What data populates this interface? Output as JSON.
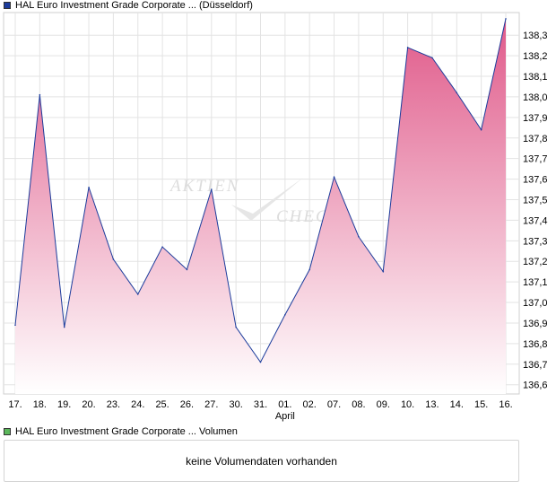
{
  "legend": {
    "price_label": "HAL Euro Investment Grade Corporate ... (Düsseldorf)",
    "price_color": "#1c3c9c",
    "volume_label": "HAL Euro Investment Grade Corporate ... Volumen",
    "volume_color": "#5cb85c"
  },
  "watermark": {
    "line1": "AKTIEN",
    "line2": "CHECK"
  },
  "volume": {
    "message": "keine Volumendaten vorhanden"
  },
  "chart_data": {
    "type": "area",
    "x": [
      "17.",
      "18.",
      "19.",
      "20.",
      "23.",
      "24.",
      "25.",
      "26.",
      "27.",
      "30.",
      "31.",
      "01.",
      "02.",
      "07.",
      "08.",
      "09.",
      "10.",
      "13.",
      "14.",
      "15.",
      "16."
    ],
    "x_sublabels": [
      {
        "index": 11,
        "text": "April"
      }
    ],
    "series": [
      {
        "values": [
          136.89,
          138.01,
          136.88,
          137.56,
          137.21,
          137.04,
          137.27,
          137.16,
          137.55,
          136.88,
          136.71,
          136.94,
          137.16,
          137.61,
          137.32,
          137.15,
          138.24,
          138.19,
          138.02,
          137.84,
          138.38
        ]
      }
    ],
    "yticks": [
      136.6,
      136.7,
      136.8,
      136.9,
      137.0,
      137.1,
      137.2,
      137.3,
      137.4,
      137.5,
      137.6,
      137.7,
      137.8,
      137.9,
      138.0,
      138.1,
      138.2,
      138.3
    ],
    "ylim": [
      136.555,
      138.41
    ],
    "grid": true,
    "line_color": "#1c3c9c",
    "fill_top_color": "#e05a8a",
    "fill_bottom_color": "#ffffff",
    "decimal_separator": ","
  }
}
